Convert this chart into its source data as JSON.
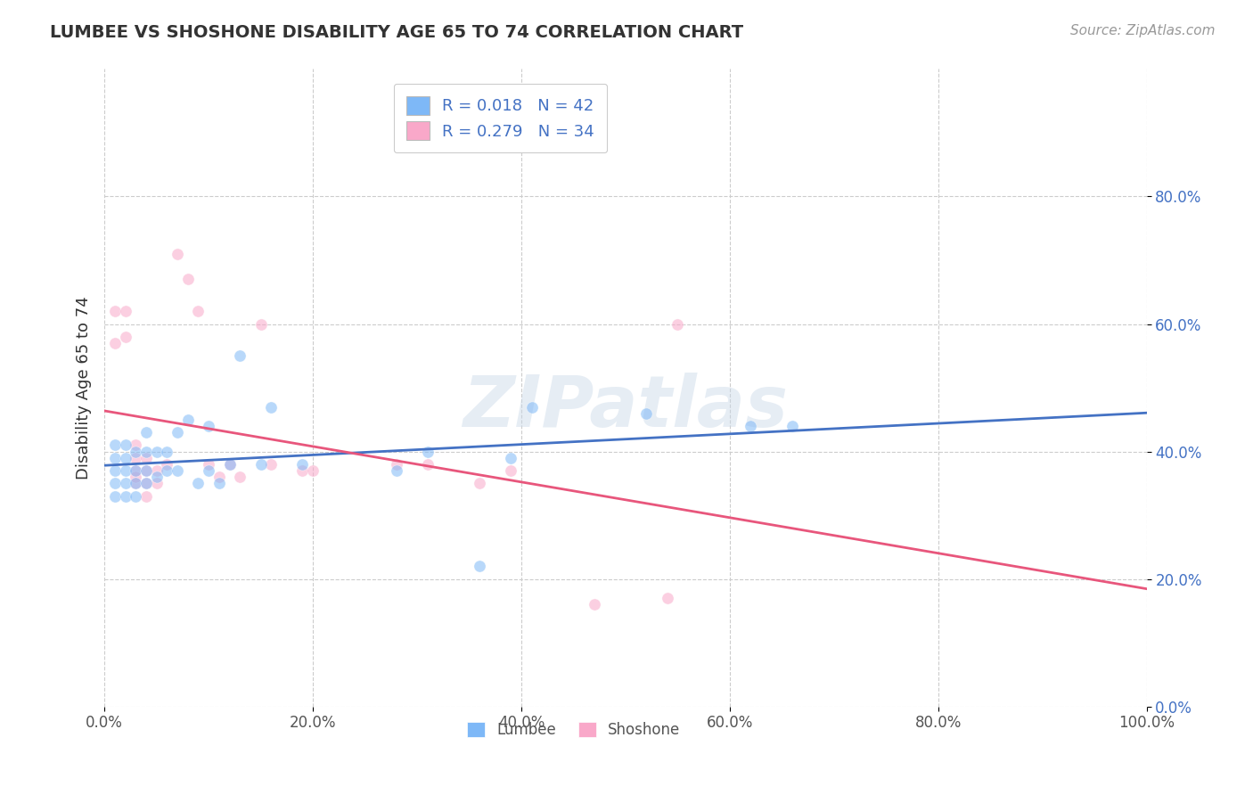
{
  "title": "LUMBEE VS SHOSHONE DISABILITY AGE 65 TO 74 CORRELATION CHART",
  "source": "Source: ZipAtlas.com",
  "ylabel": "Disability Age 65 to 74",
  "xlim": [
    0.0,
    1.0
  ],
  "ylim": [
    0.0,
    1.0
  ],
  "xticks": [
    0.0,
    0.2,
    0.4,
    0.6,
    0.8,
    1.0
  ],
  "yticks": [
    0.0,
    0.2,
    0.4,
    0.6,
    0.8
  ],
  "xticklabels": [
    "0.0%",
    "20.0%",
    "40.0%",
    "60.0%",
    "80.0%",
    "100.0%"
  ],
  "yticklabels": [
    "0.0%",
    "20.0%",
    "40.0%",
    "60.0%",
    "80.0%"
  ],
  "lumbee_color": "#7EB8F7",
  "shoshone_color": "#F9A8C9",
  "lumbee_line_color": "#4472C4",
  "shoshone_line_color": "#E8567C",
  "lumbee_R": 0.018,
  "lumbee_N": 42,
  "shoshone_R": 0.279,
  "shoshone_N": 34,
  "watermark": "ZIPatlas",
  "background_color": "#FFFFFF",
  "grid_color": "#CCCCCC",
  "lumbee_x": [
    0.01,
    0.01,
    0.01,
    0.01,
    0.01,
    0.02,
    0.02,
    0.02,
    0.02,
    0.02,
    0.03,
    0.03,
    0.03,
    0.03,
    0.04,
    0.04,
    0.04,
    0.04,
    0.05,
    0.05,
    0.06,
    0.06,
    0.07,
    0.07,
    0.08,
    0.09,
    0.1,
    0.1,
    0.11,
    0.12,
    0.13,
    0.15,
    0.16,
    0.19,
    0.28,
    0.31,
    0.36,
    0.39,
    0.41,
    0.52,
    0.62,
    0.66
  ],
  "lumbee_y": [
    0.33,
    0.35,
    0.37,
    0.39,
    0.41,
    0.33,
    0.35,
    0.37,
    0.39,
    0.41,
    0.33,
    0.35,
    0.37,
    0.4,
    0.35,
    0.37,
    0.4,
    0.43,
    0.36,
    0.4,
    0.37,
    0.4,
    0.37,
    0.43,
    0.45,
    0.35,
    0.37,
    0.44,
    0.35,
    0.38,
    0.55,
    0.38,
    0.47,
    0.38,
    0.37,
    0.4,
    0.22,
    0.39,
    0.47,
    0.46,
    0.44,
    0.44
  ],
  "shoshone_x": [
    0.01,
    0.01,
    0.02,
    0.02,
    0.03,
    0.03,
    0.03,
    0.03,
    0.03,
    0.04,
    0.04,
    0.04,
    0.04,
    0.05,
    0.05,
    0.06,
    0.07,
    0.08,
    0.09,
    0.1,
    0.11,
    0.12,
    0.13,
    0.15,
    0.16,
    0.19,
    0.2,
    0.28,
    0.31,
    0.36,
    0.39,
    0.47,
    0.54,
    0.55
  ],
  "shoshone_y": [
    0.62,
    0.57,
    0.62,
    0.58,
    0.35,
    0.37,
    0.39,
    0.41,
    0.36,
    0.35,
    0.37,
    0.39,
    0.33,
    0.35,
    0.37,
    0.38,
    0.71,
    0.67,
    0.62,
    0.38,
    0.36,
    0.38,
    0.36,
    0.6,
    0.38,
    0.37,
    0.37,
    0.38,
    0.38,
    0.35,
    0.37,
    0.16,
    0.17,
    0.6
  ],
  "marker_size": 90,
  "marker_alpha": 0.55
}
